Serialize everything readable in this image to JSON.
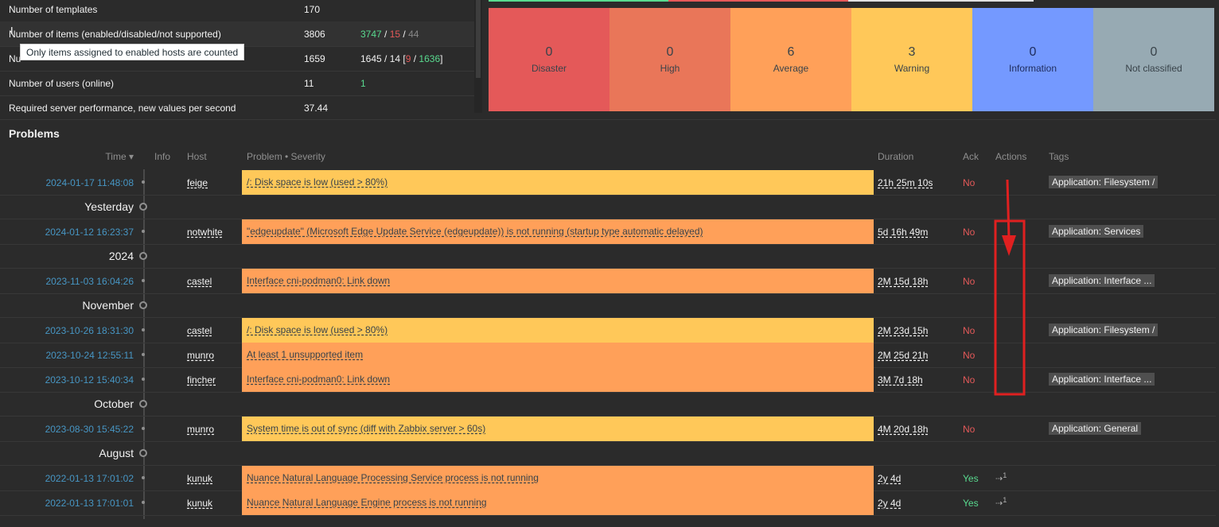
{
  "system_info": {
    "rows": [
      {
        "param": "Number of templates",
        "value": "170",
        "details": []
      },
      {
        "param": "Number of items (enabled/disabled/not supported)",
        "value": "3806",
        "details": [
          {
            "t": "3747",
            "c": "green"
          },
          {
            "t": " / ",
            "c": ""
          },
          {
            "t": "15",
            "c": "red"
          },
          {
            "t": " / ",
            "c": ""
          },
          {
            "t": "44",
            "c": "grey"
          }
        ]
      },
      {
        "param": "Nu",
        "value": "1659",
        "details": [
          {
            "t": "1645 / 14 [",
            "c": ""
          },
          {
            "t": "9",
            "c": "red"
          },
          {
            "t": " / ",
            "c": ""
          },
          {
            "t": "1636",
            "c": "green"
          },
          {
            "t": "]",
            "c": ""
          }
        ]
      },
      {
        "param": "Number of users (online)",
        "value": "11",
        "details": [
          {
            "t": "1",
            "c": "green"
          }
        ]
      },
      {
        "param": "Required server performance, new values per second",
        "value": "37.44",
        "details": []
      }
    ],
    "tooltip": "Only items assigned to enabled hosts are counted"
  },
  "severity": {
    "items": [
      {
        "name": "Disaster",
        "count": "0",
        "bg": "#e45959",
        "fg": "#39434a"
      },
      {
        "name": "High",
        "count": "0",
        "bg": "#e97659",
        "fg": "#39434a"
      },
      {
        "name": "Average",
        "count": "6",
        "bg": "#ffa059",
        "fg": "#39434a"
      },
      {
        "name": "Warning",
        "count": "3",
        "bg": "#ffc859",
        "fg": "#39434a"
      },
      {
        "name": "Information",
        "count": "0",
        "bg": "#7499ff",
        "fg": "#1f2c5c"
      },
      {
        "name": "Not classified",
        "count": "0",
        "bg": "#97aab3",
        "fg": "#39434a"
      }
    ]
  },
  "problems": {
    "title": "Problems",
    "headers": {
      "time": "Time ▾",
      "info": "Info",
      "host": "Host",
      "problem": "Problem • Severity",
      "duration": "Duration",
      "ack": "Ack",
      "actions": "Actions",
      "tags": "Tags"
    },
    "rows": [
      {
        "kind": "problem",
        "time": "2024-01-17 11:48:08",
        "host": "feige",
        "problem": "/: Disk space is low (used > 80%)",
        "color": "#ffc859",
        "duration": "21h 25m 10s",
        "ack": "No",
        "action": "",
        "tag": "Application: Filesystem /"
      },
      {
        "kind": "group",
        "label": "Yesterday"
      },
      {
        "kind": "problem",
        "time": "2024-01-12 16:23:37",
        "host": "notwhite",
        "problem": "\"edgeupdate\" (Microsoft Edge Update Service (edgeupdate)) is not running (startup type automatic delayed)",
        "color": "#ffa059",
        "duration": "5d 16h 49m",
        "ack": "No",
        "action": "",
        "tag": "Application: Services"
      },
      {
        "kind": "group",
        "label": "2024"
      },
      {
        "kind": "problem",
        "time": "2023-11-03 16:04:26",
        "host": "castel",
        "problem": "Interface cni-podman0: Link down",
        "color": "#ffa059",
        "duration": "2M 15d 18h",
        "ack": "No",
        "action": "",
        "tag": "Application: Interface ..."
      },
      {
        "kind": "group",
        "label": "November"
      },
      {
        "kind": "problem",
        "time": "2023-10-26 18:31:30",
        "host": "castel",
        "problem": "/: Disk space is low (used > 80%)",
        "color": "#ffc859",
        "duration": "2M 23d 15h",
        "ack": "No",
        "action": "",
        "tag": "Application: Filesystem /"
      },
      {
        "kind": "problem",
        "time": "2023-10-24 12:55:11",
        "host": "munro",
        "problem": "At least 1 unsupported item",
        "color": "#ffa059",
        "duration": "2M 25d 21h",
        "ack": "No",
        "action": "",
        "tag": ""
      },
      {
        "kind": "problem",
        "time": "2023-10-12 15:40:34",
        "host": "fincher",
        "problem": "Interface cni-podman0: Link down",
        "color": "#ffa059",
        "duration": "3M 7d 18h",
        "ack": "No",
        "action": "",
        "tag": "Application: Interface ..."
      },
      {
        "kind": "group",
        "label": "October"
      },
      {
        "kind": "problem",
        "time": "2023-08-30 15:45:22",
        "host": "munro",
        "problem": "System time is out of sync (diff with Zabbix server > 60s)",
        "color": "#ffc859",
        "duration": "4M 20d 18h",
        "ack": "No",
        "action": "",
        "tag": "Application: General"
      },
      {
        "kind": "group",
        "label": "August"
      },
      {
        "kind": "problem",
        "time": "2022-01-13 17:01:02",
        "host": "kunuk",
        "problem": "Nuance Natural Language Processing Service process is not running",
        "color": "#ffa059",
        "duration": "2y 4d",
        "ack": "Yes",
        "action": "1",
        "tag": ""
      },
      {
        "kind": "problem",
        "time": "2022-01-13 17:01:01",
        "host": "kunuk",
        "problem": "Nuance Natural Language Engine process is not running",
        "color": "#ffa059",
        "duration": "2y 4d",
        "ack": "Yes",
        "action": "1",
        "tag": ""
      }
    ]
  },
  "annotation": {
    "color": "#e02020"
  }
}
